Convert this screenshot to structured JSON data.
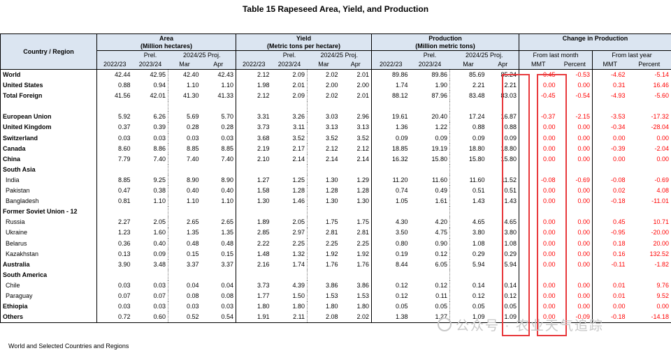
{
  "title": "Table 15 Rapeseed Area, Yield, and Production",
  "header": {
    "country": "Country / Region",
    "area": "Area",
    "area_unit": "(Million hectares)",
    "yield": "Yield",
    "yield_unit": "(Metric tons per hectare)",
    "production": "Production",
    "production_unit": "(Million metric tons)",
    "change": "Change in Production",
    "from_last_month": "From last month",
    "from_last_year": "From last year",
    "y1": "2022/23",
    "prel": "Prel.",
    "y2": "2023/24",
    "proj": "2024/25 Proj.",
    "mar": "Mar",
    "apr": "Apr",
    "mmt": "MMT",
    "percent": "Percent"
  },
  "rows": [
    {
      "label": "World",
      "type": "bold",
      "v": [
        "42.44",
        "42.95",
        "42.40",
        "42.43",
        "2.12",
        "2.09",
        "2.02",
        "2.01",
        "89.86",
        "89.86",
        "85.69",
        "85.24",
        "-0.45",
        "-0.53",
        "-4.62",
        "-5.14"
      ]
    },
    {
      "label": "United States",
      "type": "bold",
      "v": [
        "0.88",
        "0.94",
        "1.10",
        "1.10",
        "1.98",
        "2.01",
        "2.00",
        "2.00",
        "1.74",
        "1.90",
        "2.21",
        "2.21",
        "0.00",
        "0.00",
        "0.31",
        "16.46"
      ]
    },
    {
      "label": "Total Foreign",
      "type": "bold",
      "v": [
        "41.56",
        "42.01",
        "41.30",
        "41.33",
        "2.12",
        "2.09",
        "2.02",
        "2.01",
        "88.12",
        "87.96",
        "83.48",
        "83.03",
        "-0.45",
        "-0.54",
        "-4.93",
        "-5.60"
      ]
    },
    {
      "label": "",
      "type": "blank",
      "v": []
    },
    {
      "label": "European Union",
      "type": "bold",
      "v": [
        "5.92",
        "6.26",
        "5.69",
        "5.70",
        "3.31",
        "3.26",
        "3.03",
        "2.96",
        "19.61",
        "20.40",
        "17.24",
        "16.87",
        "-0.37",
        "-2.15",
        "-3.53",
        "-17.32"
      ]
    },
    {
      "label": "United Kingdom",
      "type": "bold",
      "v": [
        "0.37",
        "0.39",
        "0.28",
        "0.28",
        "3.73",
        "3.11",
        "3.13",
        "3.13",
        "1.36",
        "1.22",
        "0.88",
        "0.88",
        "0.00",
        "0.00",
        "-0.34",
        "-28.04"
      ]
    },
    {
      "label": "Switzerland",
      "type": "bold",
      "v": [
        "0.03",
        "0.03",
        "0.03",
        "0.03",
        "3.68",
        "3.52",
        "3.52",
        "3.52",
        "0.09",
        "0.09",
        "0.09",
        "0.09",
        "0.00",
        "0.00",
        "0.00",
        "0.00"
      ]
    },
    {
      "label": "Canada",
      "type": "bold",
      "v": [
        "8.60",
        "8.86",
        "8.85",
        "8.85",
        "2.19",
        "2.17",
        "2.12",
        "2.12",
        "18.85",
        "19.19",
        "18.80",
        "18.80",
        "0.00",
        "0.00",
        "-0.39",
        "-2.04"
      ]
    },
    {
      "label": "China",
      "type": "bold",
      "v": [
        "7.79",
        "7.40",
        "7.40",
        "7.40",
        "2.10",
        "2.14",
        "2.14",
        "2.14",
        "16.32",
        "15.80",
        "15.80",
        "15.80",
        "0.00",
        "0.00",
        "0.00",
        "0.00"
      ]
    },
    {
      "label": "South Asia",
      "type": "bold",
      "v": []
    },
    {
      "label": "India",
      "type": "indent",
      "v": [
        "8.85",
        "9.25",
        "8.90",
        "8.90",
        "1.27",
        "1.25",
        "1.30",
        "1.29",
        "11.20",
        "11.60",
        "11.60",
        "11.52",
        "-0.08",
        "-0.69",
        "-0.08",
        "-0.69"
      ]
    },
    {
      "label": "Pakistan",
      "type": "indent",
      "v": [
        "0.47",
        "0.38",
        "0.40",
        "0.40",
        "1.58",
        "1.28",
        "1.28",
        "1.28",
        "0.74",
        "0.49",
        "0.51",
        "0.51",
        "0.00",
        "0.00",
        "0.02",
        "4.08"
      ]
    },
    {
      "label": "Bangladesh",
      "type": "indent",
      "v": [
        "0.81",
        "1.10",
        "1.10",
        "1.10",
        "1.30",
        "1.46",
        "1.30",
        "1.30",
        "1.05",
        "1.61",
        "1.43",
        "1.43",
        "0.00",
        "0.00",
        "-0.18",
        "-11.01"
      ]
    },
    {
      "label": "Former Soviet Union - 12",
      "type": "bold",
      "v": []
    },
    {
      "label": "Russia",
      "type": "indent",
      "v": [
        "2.27",
        "2.05",
        "2.65",
        "2.65",
        "1.89",
        "2.05",
        "1.75",
        "1.75",
        "4.30",
        "4.20",
        "4.65",
        "4.65",
        "0.00",
        "0.00",
        "0.45",
        "10.71"
      ]
    },
    {
      "label": "Ukraine",
      "type": "indent",
      "v": [
        "1.23",
        "1.60",
        "1.35",
        "1.35",
        "2.85",
        "2.97",
        "2.81",
        "2.81",
        "3.50",
        "4.75",
        "3.80",
        "3.80",
        "0.00",
        "0.00",
        "-0.95",
        "-20.00"
      ]
    },
    {
      "label": "Belarus",
      "type": "indent",
      "v": [
        "0.36",
        "0.40",
        "0.48",
        "0.48",
        "2.22",
        "2.25",
        "2.25",
        "2.25",
        "0.80",
        "0.90",
        "1.08",
        "1.08",
        "0.00",
        "0.00",
        "0.18",
        "20.00"
      ]
    },
    {
      "label": "Kazakhstan",
      "type": "indent",
      "v": [
        "0.13",
        "0.09",
        "0.15",
        "0.15",
        "1.48",
        "1.32",
        "1.92",
        "1.92",
        "0.19",
        "0.12",
        "0.29",
        "0.29",
        "0.00",
        "0.00",
        "0.16",
        "132.52"
      ]
    },
    {
      "label": "Australia",
      "type": "bold",
      "v": [
        "3.90",
        "3.48",
        "3.37",
        "3.37",
        "2.16",
        "1.74",
        "1.76",
        "1.76",
        "8.44",
        "6.05",
        "5.94",
        "5.94",
        "0.00",
        "0.00",
        "-0.11",
        "-1.82"
      ]
    },
    {
      "label": "South America",
      "type": "bold",
      "v": []
    },
    {
      "label": "Chile",
      "type": "indent",
      "v": [
        "0.03",
        "0.03",
        "0.04",
        "0.04",
        "3.73",
        "4.39",
        "3.86",
        "3.86",
        "0.12",
        "0.12",
        "0.14",
        "0.14",
        "0.00",
        "0.00",
        "0.01",
        "9.76"
      ]
    },
    {
      "label": "Paraguay",
      "type": "indent",
      "v": [
        "0.07",
        "0.07",
        "0.08",
        "0.08",
        "1.77",
        "1.50",
        "1.53",
        "1.53",
        "0.12",
        "0.11",
        "0.12",
        "0.12",
        "0.00",
        "0.00",
        "0.01",
        "9.52"
      ]
    },
    {
      "label": "Ethiopia",
      "type": "bold",
      "v": [
        "0.03",
        "0.03",
        "0.03",
        "0.03",
        "1.80",
        "1.80",
        "1.80",
        "1.80",
        "0.05",
        "0.05",
        "0.05",
        "0.05",
        "0.00",
        "0.00",
        "0.00",
        "0.00"
      ]
    },
    {
      "label": "Others",
      "type": "bold",
      "v": [
        "0.72",
        "0.60",
        "0.52",
        "0.54",
        "1.91",
        "2.11",
        "2.08",
        "2.02",
        "1.38",
        "1.27",
        "1.09",
        "1.09",
        "0.00",
        "-0.09",
        "-0.18",
        "-14.18"
      ]
    }
  ],
  "footer": "World and Selected Countries and Regions",
  "watermark": "公众号 · 农业天气追踪",
  "colors": {
    "header_bg": "#dbe5f1",
    "change_text": "#ff0000",
    "highlight": "#e8393c"
  }
}
